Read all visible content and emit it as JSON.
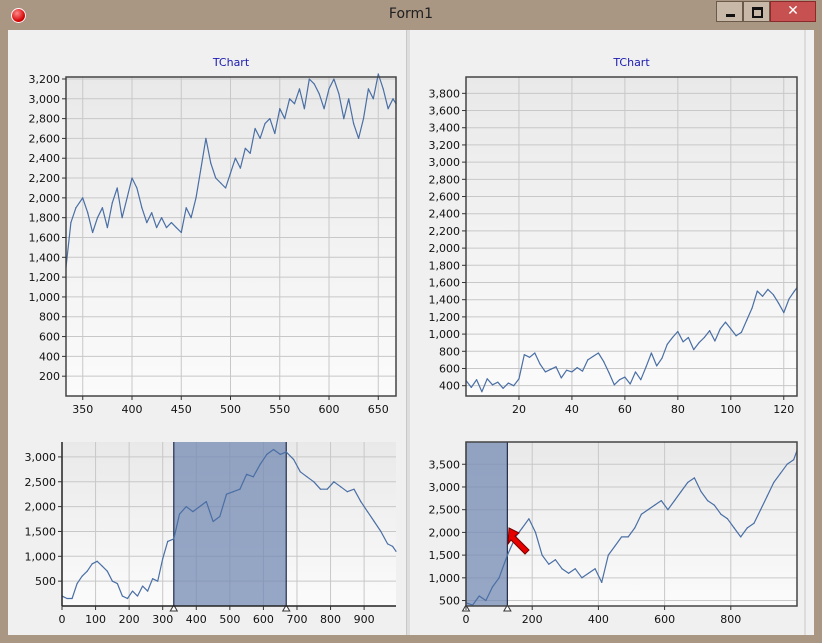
{
  "window": {
    "title": "Form1",
    "close_glyph": "✕"
  },
  "chart_data": [
    {
      "id": "top-left",
      "type": "line",
      "title": "TChart",
      "xlim": [
        333,
        668
      ],
      "ylim": [
        0,
        3220
      ],
      "xticks": [
        350,
        400,
        450,
        500,
        550,
        600,
        650
      ],
      "yticks": [
        200,
        400,
        600,
        800,
        1000,
        1200,
        1400,
        1600,
        1800,
        2000,
        2200,
        2400,
        2600,
        2800,
        3000,
        3200
      ],
      "ytick_labels": [
        "200",
        "400",
        "600",
        "800",
        "1,000",
        "1,200",
        "1,400",
        "1,600",
        "1,800",
        "2,000",
        "2,200",
        "2,400",
        "2,600",
        "2,800",
        "3,000",
        "3,200"
      ],
      "grid": true,
      "color": "#4a6fa5",
      "series": [
        {
          "x": [
            333,
            338,
            343,
            350,
            355,
            360,
            365,
            370,
            375,
            380,
            385,
            390,
            395,
            400,
            405,
            410,
            415,
            420,
            425,
            430,
            435,
            440,
            445,
            450,
            455,
            460,
            465,
            470,
            475,
            480,
            485,
            490,
            495,
            500,
            505,
            510,
            515,
            520,
            525,
            530,
            535,
            540,
            545,
            550,
            555,
            560,
            565,
            570,
            575,
            580,
            585,
            590,
            595,
            600,
            605,
            610,
            615,
            620,
            625,
            630,
            635,
            640,
            645,
            650,
            655,
            660,
            665,
            668
          ],
          "values": [
            1300,
            1750,
            1900,
            2000,
            1850,
            1650,
            1800,
            1900,
            1700,
            1950,
            2100,
            1800,
            2000,
            2200,
            2100,
            1900,
            1750,
            1850,
            1700,
            1800,
            1700,
            1750,
            1700,
            1650,
            1900,
            1800,
            2000,
            2300,
            2600,
            2350,
            2200,
            2150,
            2100,
            2250,
            2400,
            2300,
            2500,
            2450,
            2700,
            2600,
            2750,
            2800,
            2650,
            2900,
            2800,
            3000,
            2950,
            3100,
            2900,
            3200,
            3150,
            3050,
            2900,
            3100,
            3200,
            3050,
            2800,
            3000,
            2750,
            2600,
            2800,
            3100,
            3000,
            3250,
            3100,
            2900,
            3000,
            2950
          ]
        }
      ]
    },
    {
      "id": "top-right",
      "type": "line",
      "title": "TChart",
      "xlim": [
        0,
        125
      ],
      "ylim": [
        280,
        3990
      ],
      "xticks": [
        20,
        40,
        60,
        80,
        100,
        120
      ],
      "yticks": [
        400,
        600,
        800,
        1000,
        1200,
        1400,
        1600,
        1800,
        2000,
        2200,
        2400,
        2600,
        2800,
        3000,
        3200,
        3400,
        3600,
        3800
      ],
      "ytick_labels": [
        "400",
        "600",
        "800",
        "1,000",
        "1,200",
        "1,400",
        "1,600",
        "1,800",
        "2,000",
        "2,200",
        "2,400",
        "2,600",
        "2,800",
        "3,000",
        "3,200",
        "3,400",
        "3,600",
        "3,800"
      ],
      "grid": true,
      "color": "#4a6fa5",
      "series": [
        {
          "x": [
            0,
            2,
            4,
            6,
            8,
            10,
            12,
            14,
            16,
            18,
            20,
            22,
            24,
            26,
            28,
            30,
            32,
            34,
            36,
            38,
            40,
            42,
            44,
            46,
            48,
            50,
            52,
            54,
            56,
            58,
            60,
            62,
            64,
            66,
            68,
            70,
            72,
            74,
            76,
            78,
            80,
            82,
            84,
            86,
            88,
            90,
            92,
            94,
            96,
            98,
            100,
            102,
            104,
            106,
            108,
            110,
            112,
            114,
            116,
            118,
            120,
            122,
            124,
            125
          ],
          "values": [
            460,
            380,
            470,
            330,
            480,
            410,
            440,
            370,
            430,
            400,
            480,
            760,
            730,
            780,
            650,
            560,
            590,
            620,
            490,
            580,
            560,
            610,
            570,
            700,
            740,
            780,
            680,
            550,
            410,
            470,
            500,
            420,
            560,
            470,
            620,
            780,
            630,
            720,
            880,
            960,
            1030,
            910,
            960,
            820,
            900,
            960,
            1040,
            920,
            1060,
            1140,
            1060,
            980,
            1020,
            1160,
            1300,
            1500,
            1440,
            1520,
            1460,
            1360,
            1250,
            1410,
            1500,
            1540
          ]
        }
      ]
    },
    {
      "id": "bottom-left",
      "type": "line",
      "title": "",
      "xlim": [
        0,
        995
      ],
      "ylim": [
        0,
        3300
      ],
      "xticks": [
        0,
        100,
        200,
        300,
        400,
        500,
        600,
        700,
        800,
        900
      ],
      "yticks": [
        500,
        1000,
        1500,
        2000,
        2500,
        3000
      ],
      "ytick_labels": [
        "500",
        "1,000",
        "1,500",
        "2,000",
        "2,500",
        "3,000"
      ],
      "grid": true,
      "color": "#4a6fa5",
      "selection": [
        333,
        668
      ],
      "series": [
        {
          "x": [
            0,
            15,
            30,
            45,
            60,
            75,
            90,
            105,
            120,
            135,
            150,
            165,
            180,
            195,
            210,
            225,
            240,
            255,
            270,
            285,
            300,
            315,
            333,
            350,
            370,
            390,
            410,
            430,
            450,
            470,
            490,
            510,
            530,
            550,
            570,
            590,
            610,
            630,
            650,
            668,
            690,
            710,
            730,
            750,
            770,
            790,
            810,
            830,
            850,
            870,
            890,
            910,
            930,
            950,
            970,
            985,
            995
          ],
          "values": [
            200,
            150,
            150,
            450,
            600,
            700,
            850,
            900,
            800,
            700,
            500,
            450,
            200,
            150,
            300,
            200,
            400,
            300,
            550,
            500,
            950,
            1300,
            1350,
            1850,
            2000,
            1900,
            2000,
            2100,
            1700,
            1800,
            2250,
            2300,
            2350,
            2650,
            2600,
            2850,
            3050,
            3150,
            3050,
            3100,
            2950,
            2700,
            2600,
            2500,
            2350,
            2350,
            2500,
            2400,
            2300,
            2350,
            2100,
            1900,
            1700,
            1500,
            1250,
            1200,
            1100
          ]
        }
      ]
    },
    {
      "id": "bottom-right",
      "type": "line",
      "title": "",
      "xlim": [
        0,
        1000
      ],
      "ylim": [
        380,
        3990
      ],
      "xticks": [
        0,
        200,
        400,
        600,
        800
      ],
      "yticks": [
        500,
        1000,
        1500,
        2000,
        2500,
        3000,
        3500
      ],
      "ytick_labels": [
        "500",
        "1,000",
        "1,500",
        "2,000",
        "2,500",
        "3,000",
        "3,500"
      ],
      "grid": true,
      "color": "#4a6fa5",
      "selection": [
        0,
        125
      ],
      "series": [
        {
          "x": [
            0,
            20,
            40,
            60,
            80,
            100,
            125,
            150,
            170,
            190,
            210,
            230,
            250,
            270,
            290,
            310,
            330,
            350,
            370,
            390,
            410,
            430,
            450,
            470,
            490,
            510,
            530,
            550,
            570,
            590,
            610,
            630,
            650,
            670,
            690,
            710,
            730,
            750,
            770,
            790,
            810,
            830,
            850,
            870,
            890,
            910,
            930,
            950,
            970,
            990,
            1000
          ],
          "values": [
            450,
            400,
            600,
            500,
            800,
            1000,
            1500,
            1900,
            2100,
            2300,
            2000,
            1500,
            1300,
            1400,
            1200,
            1100,
            1200,
            1000,
            1100,
            1200,
            900,
            1500,
            1700,
            1900,
            1900,
            2100,
            2400,
            2500,
            2600,
            2700,
            2500,
            2700,
            2900,
            3100,
            3200,
            2900,
            2700,
            2600,
            2400,
            2300,
            2100,
            1900,
            2100,
            2200,
            2500,
            2800,
            3100,
            3300,
            3500,
            3600,
            3800
          ]
        }
      ]
    }
  ]
}
